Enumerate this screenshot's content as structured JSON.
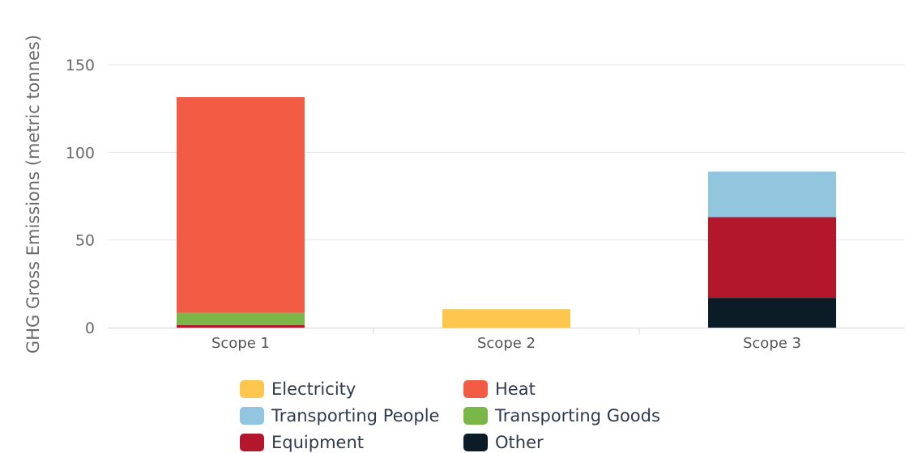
{
  "chart_data": {
    "type": "bar",
    "stacked": true,
    "title": "",
    "xlabel": "",
    "ylabel": "GHG Gross Emissions (metric tonnes)",
    "ylim": [
      0,
      160
    ],
    "yticks": [
      0,
      50,
      100,
      150
    ],
    "grid": true,
    "legend_position": "bottom",
    "categories": [
      "Scope 1",
      "Scope 2",
      "Scope 3"
    ],
    "series": [
      {
        "name": "Other",
        "color": "#0b1c26",
        "values": [
          0,
          0,
          17
        ]
      },
      {
        "name": "Equipment",
        "color": "#b2172c",
        "values": [
          1.5,
          0,
          46
        ]
      },
      {
        "name": "Transporting Goods",
        "color": "#7ab648",
        "values": [
          7,
          0,
          0
        ]
      },
      {
        "name": "Heat",
        "color": "#f25c45",
        "values": [
          123,
          0,
          0
        ]
      },
      {
        "name": "Transporting People",
        "color": "#92c5de",
        "values": [
          0,
          0,
          26
        ]
      },
      {
        "name": "Electricity",
        "color": "#fcc64f",
        "values": [
          0,
          10.5,
          0
        ]
      }
    ]
  },
  "legend": [
    {
      "label": "Electricity",
      "color": "#fcc64f"
    },
    {
      "label": "Heat",
      "color": "#f25c45"
    },
    {
      "label": "Transporting People",
      "color": "#92c5de"
    },
    {
      "label": "Transporting Goods",
      "color": "#7ab648"
    },
    {
      "label": "Equipment",
      "color": "#b2172c"
    },
    {
      "label": "Other",
      "color": "#0b1c26"
    }
  ]
}
